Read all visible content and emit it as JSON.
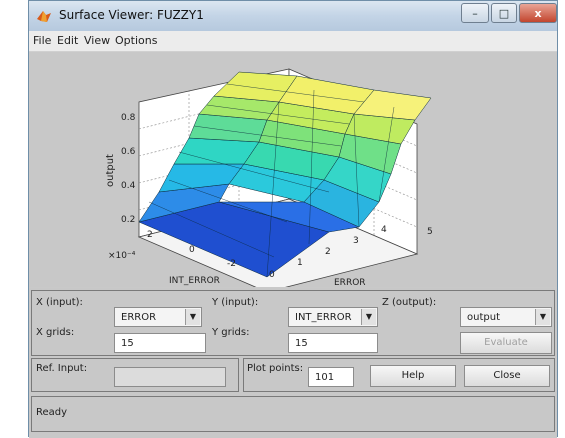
{
  "window": {
    "title": "Surface Viewer: FUZZY1",
    "controls": {
      "minimize": "–",
      "maximize": "□",
      "close": "x"
    }
  },
  "menu": [
    "File",
    "Edit",
    "View",
    "Options"
  ],
  "plot": {
    "z_axis_label": "output",
    "x_axis_label": "ERROR",
    "y_axis_label": "INT_ERROR",
    "y_exponent": "×10⁻⁴",
    "z_ticks": [
      "0.2",
      "0.4",
      "0.6",
      "0.8"
    ],
    "x_ticks": [
      "0",
      "1",
      "2",
      "3",
      "4",
      "5"
    ],
    "y_ticks": [
      "2",
      "0",
      "-2"
    ]
  },
  "controls": {
    "x_input_label": "X (input):",
    "x_input_value": "ERROR",
    "y_input_label": "Y (input):",
    "y_input_value": "INT_ERROR",
    "z_output_label": "Z (output):",
    "z_output_value": "output",
    "x_grids_label": "X grids:",
    "x_grids_value": "15",
    "y_grids_label": "Y grids:",
    "y_grids_value": "15",
    "evaluate_label": "Evaluate",
    "ref_input_label": "Ref. Input:",
    "ref_input_value": "",
    "plot_points_label": "Plot points:",
    "plot_points_value": "101",
    "help_label": "Help",
    "close_label": "Close",
    "status": "Ready"
  },
  "colors": {
    "surface_low": "#1f4fd0",
    "surface_mid": "#2fd6d0",
    "surface_high": "#f2f06a"
  }
}
